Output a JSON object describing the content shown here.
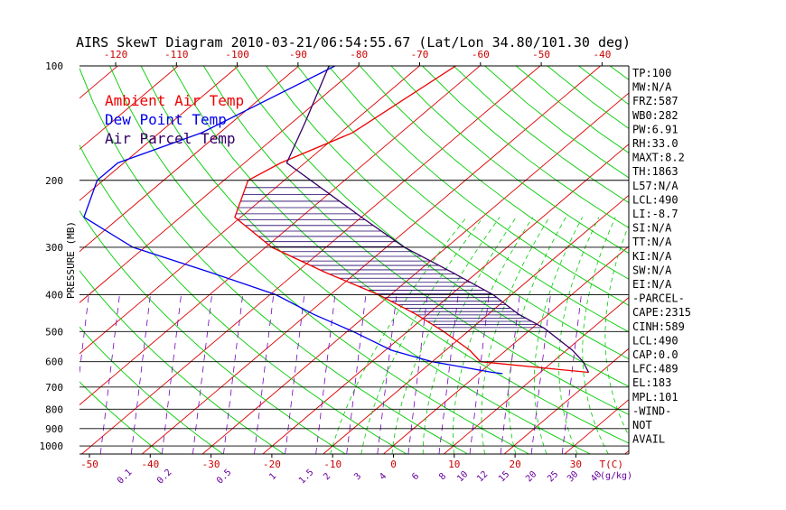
{
  "title": "AIRS SkewT Diagram 2010-03-21/06:54:55.67 (Lat/Lon 34.80/101.30 deg)",
  "legend": [
    {
      "label": "Ambient Air Temp",
      "color": "#ee0000"
    },
    {
      "label": "Dew Point Temp",
      "color": "#0000ee"
    },
    {
      "label": "Air Parcel Temp",
      "color": "#330066"
    }
  ],
  "colors": {
    "dry_adiabat": "#00cc00",
    "moist_adiabat": "#00cc00",
    "isotherm": "#dd0000",
    "mixing_ratio": "#7700bb",
    "cape_hatch": "#220066"
  },
  "indices": [
    "TP:100",
    "MW:N/A",
    "FRZ:587",
    "WB0:282",
    "PW:6.91",
    "RH:33.0",
    "MAXT:8.2",
    "TH:1863",
    "L57:N/A",
    "LCL:490",
    "LI:-8.7",
    "SI:N/A",
    "TT:N/A",
    "KI:N/A",
    "SW:N/A",
    "EI:N/A",
    "-PARCEL-",
    "CAPE:2315",
    "CINH:589",
    "LCL:490",
    "CAP:0.0",
    "LFC:489",
    "EL:183",
    "MPL:101",
    "-WIND-",
    "NOT",
    "AVAIL"
  ],
  "chart_data": {
    "type": "line",
    "title": "AIRS SkewT Diagram 2010-03-21/06:54:55.67 (Lat/Lon 34.80/101.30 deg)",
    "ylabel": "PRESSURE (MB)",
    "xlabel": "T(C)",
    "mixing_ratio_unit": "(g/kg)",
    "pressure_levels": [
      100,
      200,
      300,
      400,
      500,
      600,
      700,
      800,
      900,
      1000
    ],
    "pressure_range": [
      1050,
      100
    ],
    "bottom_temp_ticks": [
      -50,
      -40,
      -30,
      -20,
      -10,
      0,
      10,
      20,
      30
    ],
    "top_temp_ticks": [
      -120,
      -110,
      -100,
      -90,
      -80,
      -70,
      -60,
      -50,
      -40
    ],
    "mixing_ratios": [
      "0.1",
      "0.2",
      "0.5",
      "1",
      "1.5",
      "2",
      "3",
      "4",
      "6",
      "8",
      "10",
      "12",
      "15",
      "20",
      "25",
      "30",
      "40"
    ],
    "series": [
      {
        "name": "Ambient Air Temp",
        "color": "#ee0000",
        "points": [
          [
            100,
            -64
          ],
          [
            150,
            -68
          ],
          [
            180,
            -74
          ],
          [
            200,
            -76
          ],
          [
            250,
            -71
          ],
          [
            300,
            -59
          ],
          [
            350,
            -45
          ],
          [
            400,
            -32
          ],
          [
            450,
            -22
          ],
          [
            500,
            -14
          ],
          [
            560,
            -6
          ],
          [
            600,
            -2
          ],
          [
            630,
            13
          ],
          [
            640,
            18
          ]
        ]
      },
      {
        "name": "Dew Point Temp",
        "color": "#0000ee",
        "points": [
          [
            100,
            -84
          ],
          [
            150,
            -93
          ],
          [
            180,
            -101
          ],
          [
            200,
            -101
          ],
          [
            250,
            -96
          ],
          [
            300,
            -82
          ],
          [
            350,
            -64
          ],
          [
            400,
            -49
          ],
          [
            450,
            -39
          ],
          [
            500,
            -29
          ],
          [
            560,
            -19
          ],
          [
            600,
            -10
          ],
          [
            640,
            2
          ],
          [
            645,
            4
          ]
        ]
      },
      {
        "name": "Air Parcel Temp",
        "color": "#330066",
        "points": [
          [
            100,
            -85
          ],
          [
            140,
            -78
          ],
          [
            180,
            -73
          ],
          [
            250,
            -50
          ],
          [
            300,
            -37
          ],
          [
            350,
            -24
          ],
          [
            400,
            -13
          ],
          [
            450,
            -5
          ],
          [
            490,
            2
          ],
          [
            560,
            11
          ],
          [
            600,
            15
          ],
          [
            640,
            18
          ]
        ]
      }
    ]
  }
}
